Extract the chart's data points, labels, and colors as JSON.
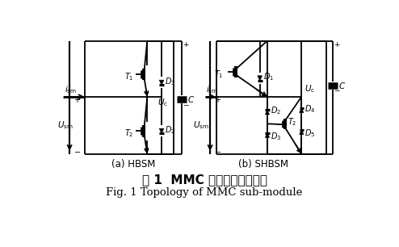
{
  "title_zh": "图 1  MMC 子模块结构示意图",
  "title_en": "Fig. 1 Topology of MMC sub-module",
  "label_a": "(a) HBSM",
  "label_b": "(b) SHBSM",
  "bg_color": "#ffffff",
  "lc": "#000000",
  "lw": 1.3
}
